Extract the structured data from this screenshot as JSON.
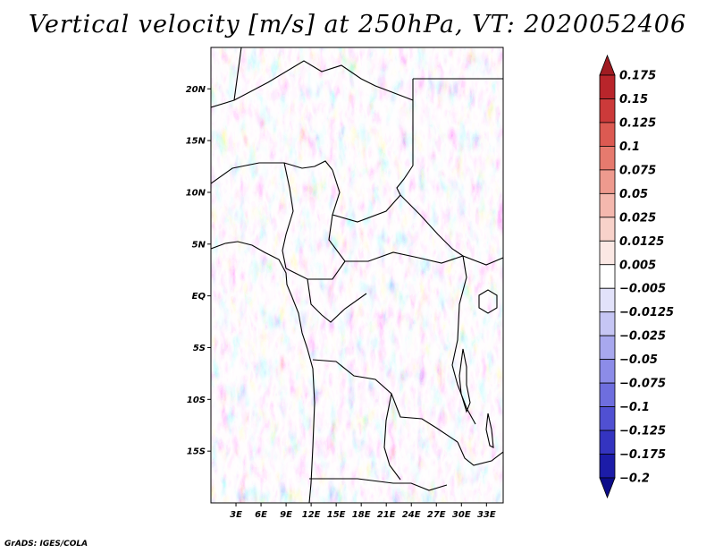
{
  "title": "Vertical velocity [m/s] at 250hPa, VT: 2020052406",
  "footer": "GrADS: IGES/COLA",
  "map": {
    "lon_range_deg": [
      0,
      35
    ],
    "lat_range_deg": [
      -20,
      24
    ],
    "lat_ticks": [
      {
        "value": 20,
        "label": "20N"
      },
      {
        "value": 15,
        "label": "15N"
      },
      {
        "value": 10,
        "label": "10N"
      },
      {
        "value": 5,
        "label": "5N"
      },
      {
        "value": 0,
        "label": "EQ"
      },
      {
        "value": -5,
        "label": "5S"
      },
      {
        "value": -10,
        "label": "10S"
      },
      {
        "value": -15,
        "label": "15S"
      }
    ],
    "lon_ticks": [
      {
        "value": 3,
        "label": "3E"
      },
      {
        "value": 6,
        "label": "6E"
      },
      {
        "value": 9,
        "label": "9E"
      },
      {
        "value": 12,
        "label": "12E"
      },
      {
        "value": 15,
        "label": "15E"
      },
      {
        "value": 18,
        "label": "18E"
      },
      {
        "value": 21,
        "label": "21E"
      },
      {
        "value": 24,
        "label": "24E"
      },
      {
        "value": 27,
        "label": "27E"
      },
      {
        "value": 30,
        "label": "30E"
      },
      {
        "value": 33,
        "label": "33E"
      }
    ],
    "colors": {
      "border_line": "#000000",
      "field_base": "#eae8f6"
    }
  },
  "colorbar": {
    "labels": [
      "0.175",
      "0.15",
      "0.125",
      "0.1",
      "0.075",
      "0.05",
      "0.025",
      "0.0125",
      "0.005",
      "−0.005",
      "−0.0125",
      "−0.025",
      "−0.05",
      "−0.075",
      "−0.1",
      "−0.125",
      "−0.175",
      "−0.2"
    ],
    "colors": [
      "#a01c22",
      "#b9252b",
      "#cc3a3a",
      "#dc5a52",
      "#e67a6e",
      "#ee9a8e",
      "#f4b8ae",
      "#f8d2ca",
      "#fbe8e4",
      "#ffffff",
      "#e2e2fa",
      "#c6c6f4",
      "#a8a8ee",
      "#8c8ce8",
      "#6e6ede",
      "#5050d2",
      "#3434c0",
      "#1c1ca8",
      "#0c0c8a"
    ]
  }
}
